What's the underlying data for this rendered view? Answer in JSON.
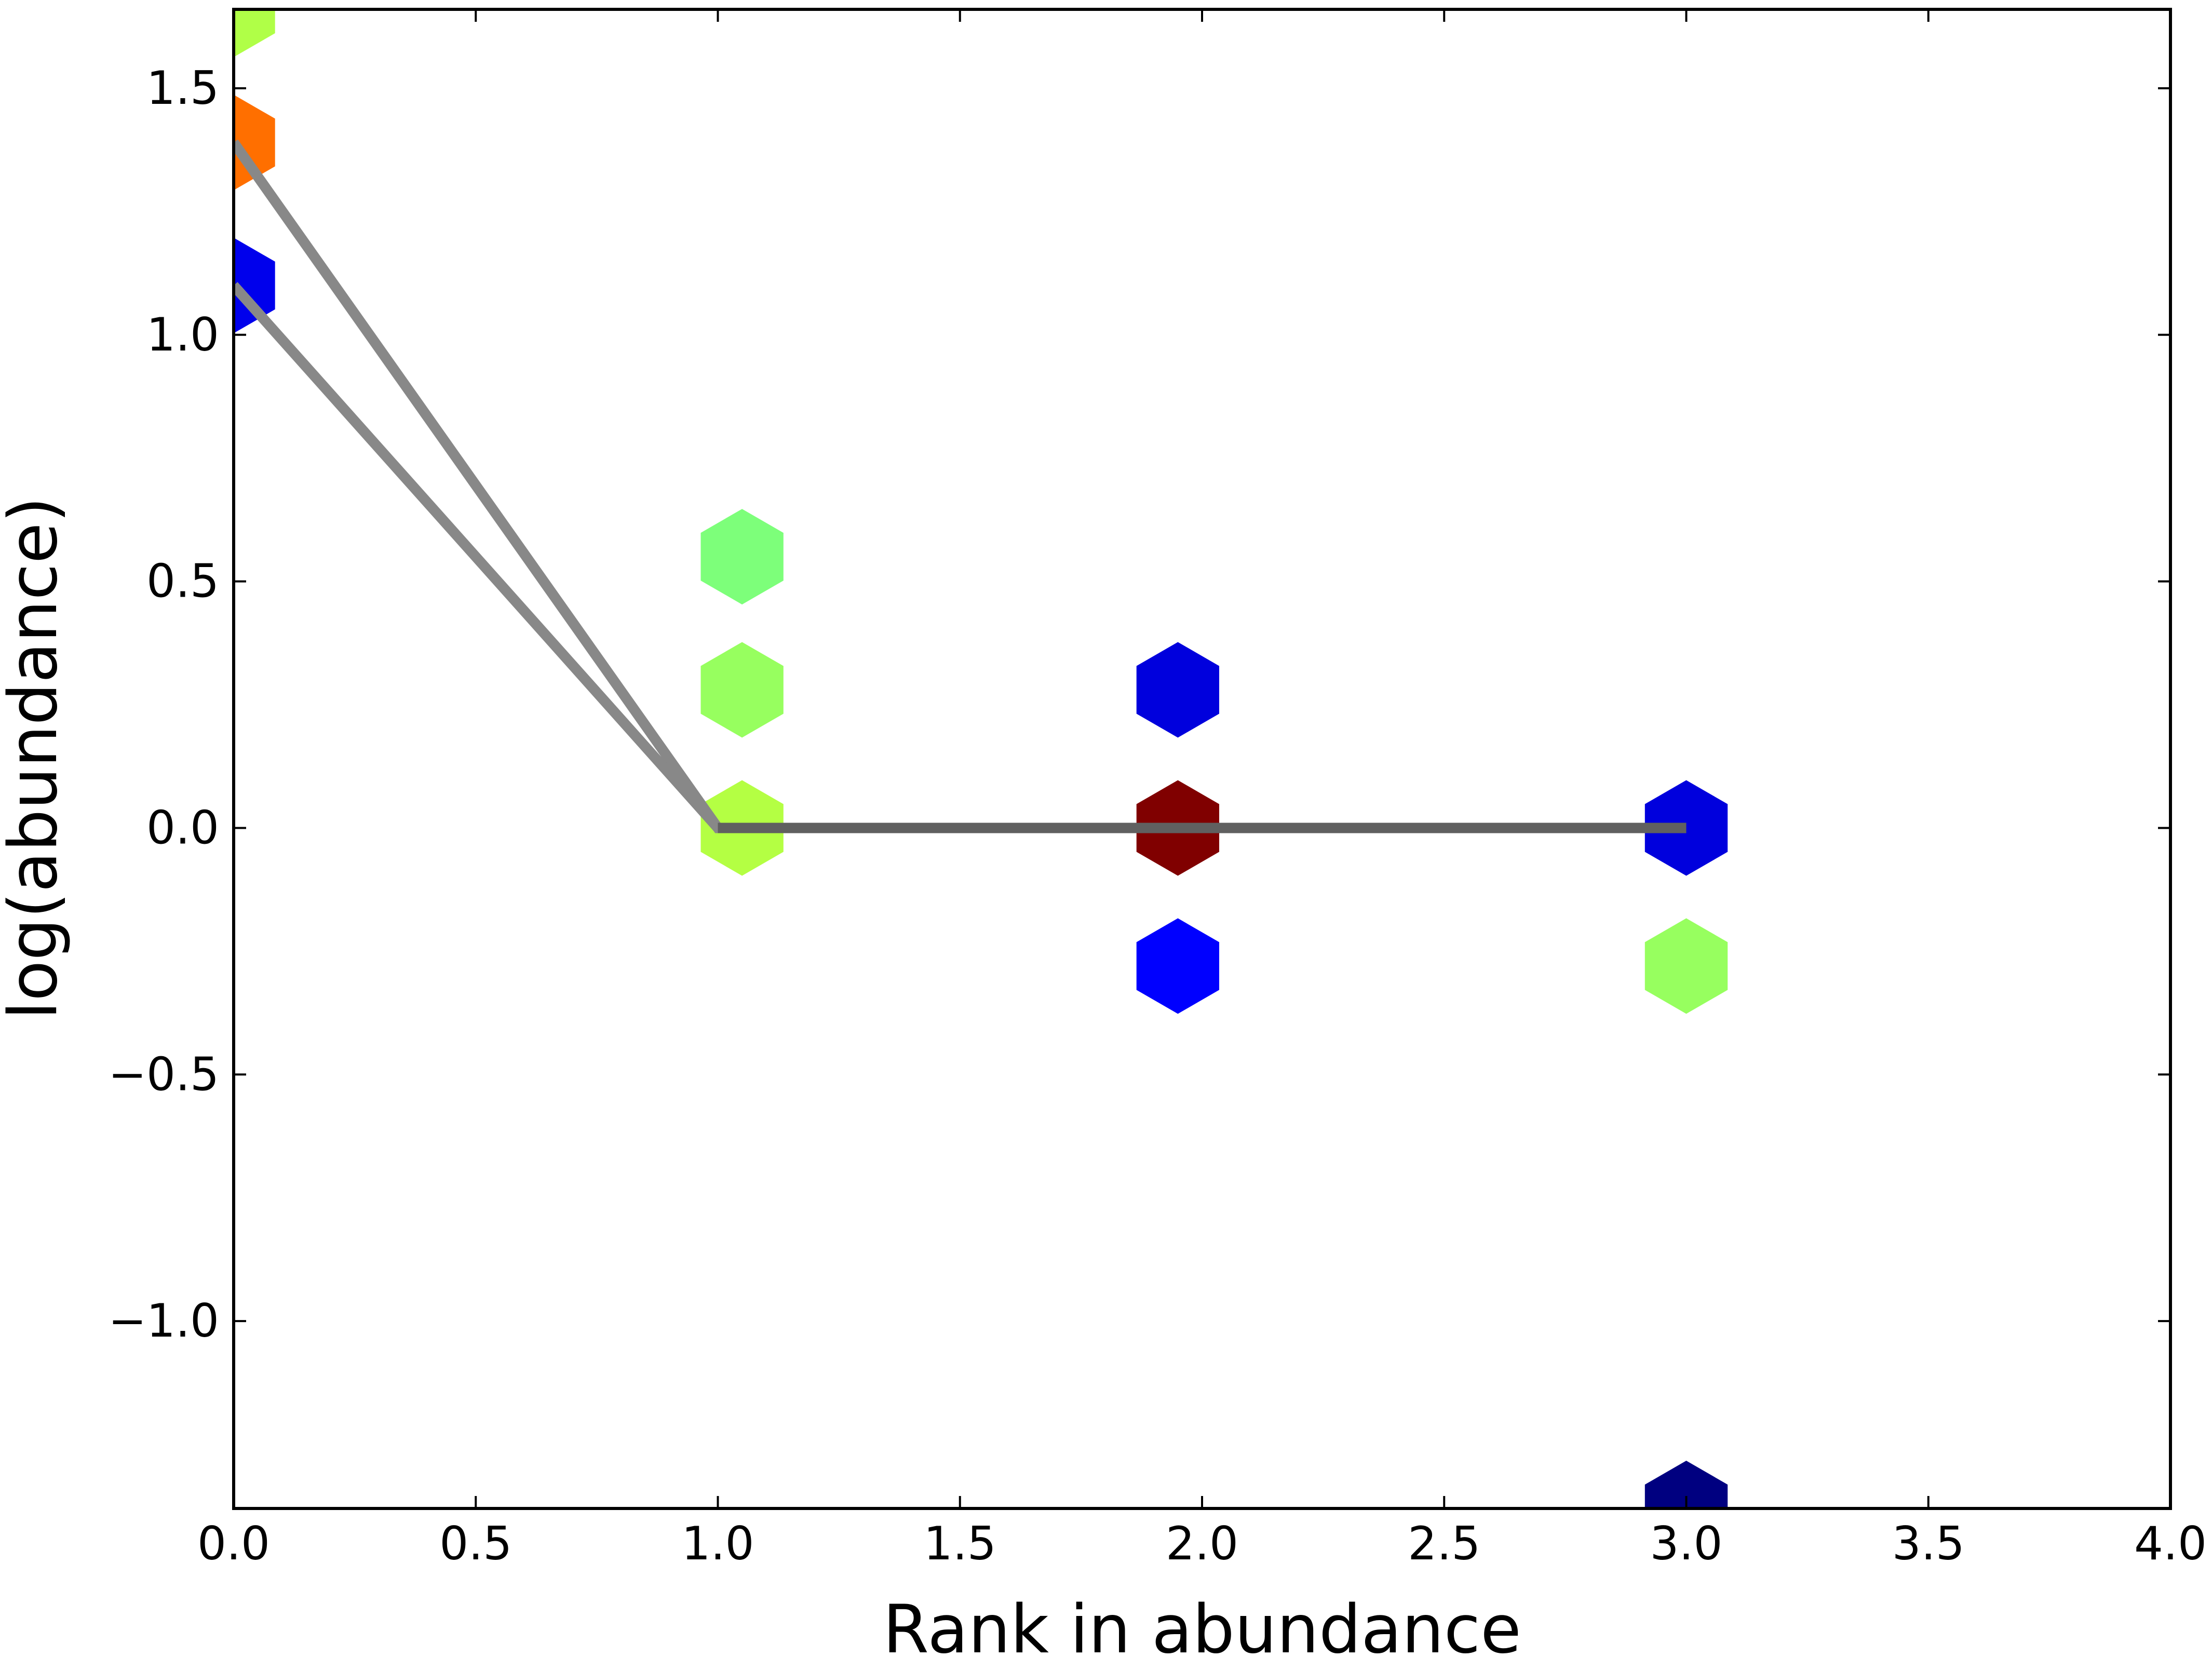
{
  "chart_data": {
    "type": "scatter",
    "title": "",
    "xlabel": "Rank in abundance",
    "ylabel": "log(abundance)",
    "xlim": [
      0.0,
      4.0
    ],
    "ylim": [
      -1.38,
      1.66
    ],
    "xticks": [
      "0.0",
      "0.5",
      "1.0",
      "1.5",
      "2.0",
      "2.5",
      "3.0",
      "3.5",
      "4.0"
    ],
    "yticks": [
      "−1.0",
      "−0.5",
      "0.0",
      "0.5",
      "1.0",
      "1.5"
    ],
    "grid": false,
    "marker": "hexagon",
    "points": [
      {
        "x": 0.0,
        "y": 1.66,
        "color": "#b0ff47"
      },
      {
        "x": 0.0,
        "y": 1.39,
        "color": "#ff6f00"
      },
      {
        "x": 0.0,
        "y": 1.1,
        "color": "#0000ec"
      },
      {
        "x": 1.05,
        "y": 0.55,
        "color": "#7dff7a"
      },
      {
        "x": 1.05,
        "y": 0.28,
        "color": "#97ff5f"
      },
      {
        "x": 1.05,
        "y": 0.0,
        "color": "#b4ff43"
      },
      {
        "x": 1.95,
        "y": 0.28,
        "color": "#0000dd"
      },
      {
        "x": 1.95,
        "y": 0.0,
        "color": "#800000"
      },
      {
        "x": 1.95,
        "y": -0.28,
        "color": "#0000ff"
      },
      {
        "x": 3.0,
        "y": 0.0,
        "color": "#0000dd"
      },
      {
        "x": 3.0,
        "y": -0.28,
        "color": "#97ff5f"
      },
      {
        "x": 3.0,
        "y": -1.38,
        "color": "#000080"
      }
    ],
    "lines": [
      {
        "x": [
          0.0,
          1.0,
          3.0
        ],
        "y": [
          1.39,
          0.0,
          0.0
        ],
        "color": "#888888"
      },
      {
        "x": [
          0.0,
          1.0,
          3.0
        ],
        "y": [
          1.1,
          0.0,
          0.0
        ],
        "color": "#888888"
      },
      {
        "x": [
          1.0,
          3.0
        ],
        "y": [
          0.0,
          0.0
        ],
        "color": "#606060"
      }
    ]
  }
}
